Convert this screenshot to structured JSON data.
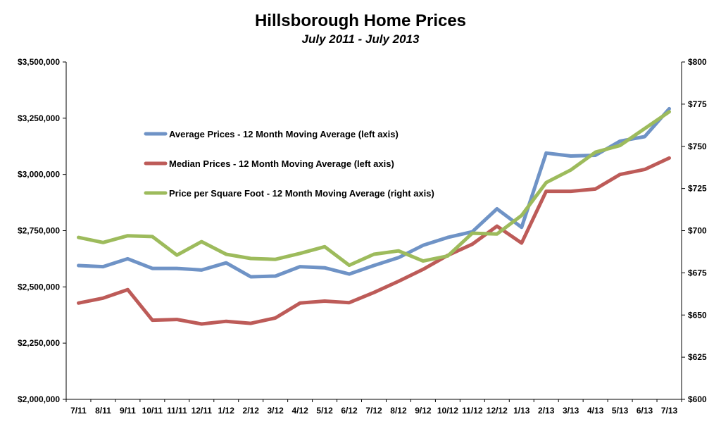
{
  "chart_data": {
    "type": "line",
    "title": "Hillsborough Home Prices",
    "subtitle": "July 2011 - July 2013",
    "categories": [
      "7/11",
      "8/11",
      "9/11",
      "10/11",
      "11/11",
      "12/11",
      "1/12",
      "2/12",
      "3/12",
      "4/12",
      "5/12",
      "6/12",
      "7/12",
      "8/12",
      "9/12",
      "10/12",
      "11/12",
      "12/12",
      "1/13",
      "2/13",
      "3/13",
      "4/13",
      "5/13",
      "6/13",
      "7/13"
    ],
    "left_axis": {
      "ylim": [
        2000000,
        3500000
      ],
      "ticks": [
        2000000,
        2250000,
        2500000,
        2750000,
        3000000,
        3250000,
        3500000
      ],
      "tick_labels": [
        "$2,000,000",
        "$2,250,000",
        "$2,500,000",
        "$2,750,000",
        "$3,000,000",
        "$3,250,000",
        "$3,500,000"
      ]
    },
    "right_axis": {
      "ylim": [
        600,
        800
      ],
      "ticks": [
        600,
        625,
        650,
        675,
        700,
        725,
        750,
        775,
        800
      ],
      "tick_labels": [
        "$600",
        "$625",
        "$650",
        "$675",
        "$700",
        "$725",
        "$750",
        "$775",
        "$800"
      ]
    },
    "series": [
      {
        "name": "Average Prices - 12 Month Moving Average (left axis)",
        "axis": "left",
        "color": "#6f93c6",
        "values": [
          2595000,
          2590000,
          2625000,
          2582000,
          2582000,
          2575000,
          2607000,
          2545000,
          2548000,
          2590000,
          2585000,
          2557000,
          2595000,
          2630000,
          2685000,
          2720000,
          2745000,
          2847000,
          2765000,
          3095000,
          3082000,
          3085000,
          3148000,
          3168000,
          3292000
        ]
      },
      {
        "name": "Median Prices - 12 Month Moving Average (left axis)",
        "axis": "left",
        "color": "#bd5b58",
        "values": [
          2428000,
          2450000,
          2488000,
          2352000,
          2355000,
          2335000,
          2347000,
          2338000,
          2362000,
          2428000,
          2437000,
          2430000,
          2475000,
          2525000,
          2578000,
          2640000,
          2690000,
          2770000,
          2695000,
          2925000,
          2925000,
          2935000,
          3000000,
          3022000,
          3073000
        ]
      },
      {
        "name": "Price per Square Foot - 12 Month Moving Average (right axis)",
        "axis": "right",
        "color": "#9dbb5c",
        "values": [
          696,
          693,
          697,
          696.5,
          685.5,
          693.5,
          686,
          683.5,
          683,
          686.5,
          690.5,
          679.5,
          686,
          688,
          682,
          685,
          698.5,
          698,
          709,
          728.5,
          736,
          746.5,
          750.5,
          760.5,
          770.5
        ]
      }
    ],
    "legend_placement": "upper-left-inside",
    "grid": false
  }
}
